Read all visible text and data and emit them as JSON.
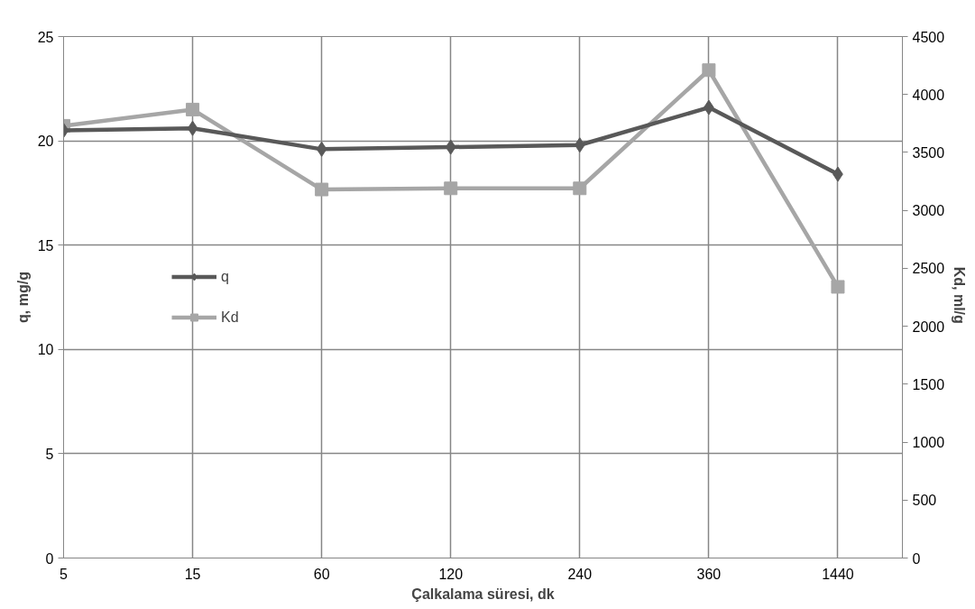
{
  "chart_data": {
    "type": "line",
    "xlabel": "Çalkalama süresi, dk",
    "ylabel": "q, mg/g",
    "y2label": "Kd,  ml/g",
    "categories": [
      "5",
      "15",
      "60",
      "120",
      "240",
      "360",
      "1440"
    ],
    "series": [
      {
        "name": "q",
        "color": "#595959",
        "marker": "diamond",
        "values": [
          20.5,
          20.6,
          19.6,
          19.7,
          19.8,
          21.6,
          18.4
        ]
      },
      {
        "name": "Kd",
        "color": "#a6a6a6",
        "marker": "square",
        "axis": "y2",
        "values": [
          3730,
          3870,
          3180,
          3190,
          3190,
          4210,
          2340
        ]
      }
    ],
    "ylim": [
      0,
      25
    ],
    "yticks": [
      0,
      5,
      10,
      15,
      20,
      25
    ],
    "y2lim": [
      0,
      4500
    ],
    "y2ticks": [
      0,
      500,
      1000,
      1500,
      2000,
      2500,
      3000,
      3500,
      4000,
      4500
    ],
    "grid": true,
    "legend": "left",
    "line_style": "solid"
  }
}
